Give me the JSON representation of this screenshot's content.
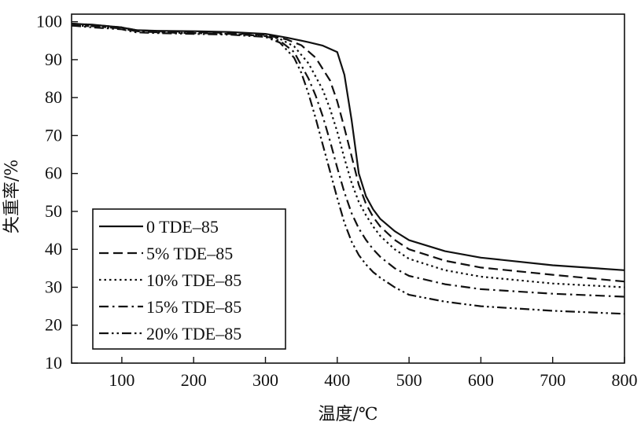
{
  "chart_data": {
    "type": "line",
    "xlabel": "温度/℃",
    "ylabel": "失重率/%",
    "xlim": [
      30,
      800
    ],
    "ylim": [
      10,
      102
    ],
    "xticks": [
      100,
      200,
      300,
      400,
      500,
      600,
      700,
      800
    ],
    "yticks": [
      10,
      20,
      30,
      40,
      50,
      60,
      70,
      80,
      90,
      100
    ],
    "grid": false,
    "legend_position": "bottom-left",
    "series": [
      {
        "name": "0 TDE–85",
        "dash": "solid",
        "x": [
          30,
          60,
          100,
          120,
          150,
          200,
          250,
          300,
          330,
          360,
          380,
          400,
          410,
          420,
          430,
          440,
          450,
          460,
          480,
          500,
          550,
          600,
          700,
          800
        ],
        "y": [
          99.5,
          99.2,
          98.5,
          97.8,
          97.6,
          97.5,
          97.3,
          96.8,
          95.8,
          94.6,
          93.7,
          92.0,
          86.0,
          74.0,
          60.0,
          54.0,
          50.5,
          48.0,
          44.8,
          42.4,
          39.5,
          37.8,
          35.8,
          34.5
        ]
      },
      {
        "name": "5% TDE–85",
        "dash": "dash",
        "x": [
          30,
          60,
          100,
          120,
          150,
          200,
          250,
          300,
          330,
          350,
          370,
          390,
          400,
          410,
          420,
          430,
          440,
          450,
          460,
          480,
          500,
          550,
          600,
          700,
          800
        ],
        "y": [
          99.5,
          99.2,
          98.5,
          97.8,
          97.5,
          97.3,
          97.0,
          96.5,
          95.3,
          93.8,
          90.5,
          84.5,
          79.0,
          72.0,
          64.5,
          57.0,
          52.0,
          48.5,
          46.0,
          42.5,
          40.0,
          37.0,
          35.2,
          33.3,
          31.5
        ]
      },
      {
        "name": "10% TDE–85",
        "dash": "dot",
        "x": [
          30,
          60,
          100,
          120,
          150,
          200,
          250,
          300,
          320,
          340,
          360,
          380,
          390,
          400,
          410,
          420,
          430,
          440,
          450,
          460,
          480,
          500,
          550,
          600,
          700,
          800
        ],
        "y": [
          99.0,
          98.8,
          98.2,
          97.5,
          97.2,
          97.0,
          96.8,
          96.3,
          95.5,
          93.5,
          89.0,
          82.0,
          77.0,
          71.0,
          64.0,
          57.5,
          52.5,
          49.0,
          46.0,
          43.5,
          40.0,
          37.5,
          34.5,
          32.8,
          31.0,
          30.0
        ]
      },
      {
        "name": "15% TDE–85",
        "dash": "dashdot",
        "x": [
          30,
          60,
          100,
          120,
          150,
          200,
          250,
          300,
          320,
          340,
          360,
          370,
          380,
          390,
          400,
          410,
          420,
          430,
          440,
          450,
          460,
          480,
          500,
          550,
          600,
          700,
          800
        ],
        "y": [
          99.0,
          98.8,
          98.2,
          97.5,
          97.2,
          97.0,
          96.8,
          96.2,
          95.0,
          92.0,
          85.0,
          80.5,
          75.0,
          68.5,
          61.5,
          55.0,
          49.5,
          45.5,
          42.5,
          40.0,
          38.0,
          35.0,
          33.0,
          30.8,
          29.5,
          28.3,
          27.5
        ]
      },
      {
        "name": "20% TDE–85",
        "dash": "dashdotdot",
        "x": [
          30,
          60,
          100,
          120,
          150,
          200,
          250,
          300,
          320,
          340,
          350,
          360,
          370,
          380,
          390,
          400,
          410,
          420,
          430,
          440,
          450,
          460,
          480,
          500,
          550,
          600,
          700,
          800
        ],
        "y": [
          99.0,
          98.5,
          98.0,
          97.2,
          97.0,
          96.8,
          96.6,
          96.0,
          94.5,
          90.5,
          86.5,
          81.0,
          74.5,
          67.5,
          60.5,
          53.5,
          47.0,
          42.0,
          38.5,
          36.0,
          34.0,
          32.5,
          30.0,
          28.0,
          26.2,
          25.0,
          23.8,
          23.0
        ]
      }
    ]
  }
}
